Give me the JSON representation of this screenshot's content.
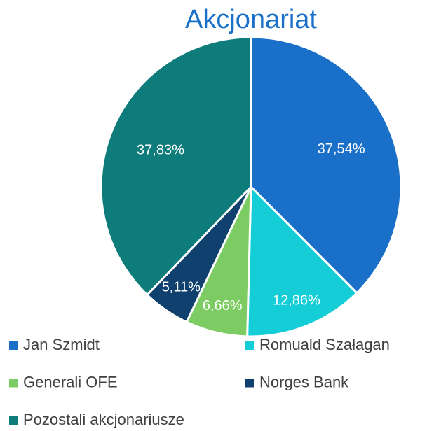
{
  "chart_data": {
    "type": "pie",
    "title": "Akcjonariat",
    "categories": [
      "Jan Szmidt",
      "Romuald Szałagan",
      "Generali OFE",
      "Norges Bank",
      "Pozostali akcjonariusze"
    ],
    "values": [
      37.54,
      12.86,
      6.66,
      5.11,
      37.83
    ],
    "value_labels": [
      "37,54%",
      "12,86%",
      "6,66%",
      "5,11%",
      "37,83%"
    ],
    "colors": [
      "#1a70c9",
      "#14cdd6",
      "#7dcc63",
      "#10406e",
      "#0f7c7c"
    ]
  }
}
